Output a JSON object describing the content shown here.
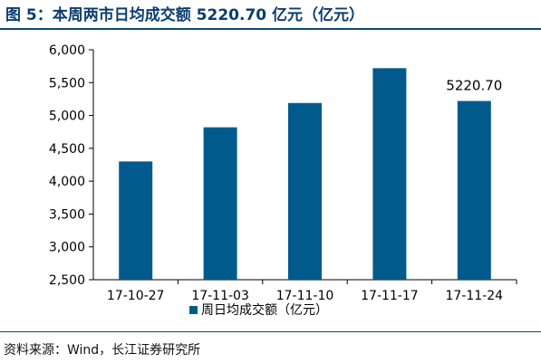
{
  "figure": {
    "title": "图 5：本周两市日均成交额 5220.70 亿元（亿元）",
    "source": "资料来源：Wind，长江证券研究所"
  },
  "chart_data": {
    "type": "bar",
    "categories": [
      "17-10-27",
      "17-11-03",
      "17-11-10",
      "17-11-17",
      "17-11-24"
    ],
    "series": [
      {
        "name": "周日均成交额（亿元）",
        "values": [
          4300,
          4820,
          5190,
          5720,
          5220.7
        ],
        "color": "#005b8c"
      }
    ],
    "yticks": [
      "2,500",
      "3,000",
      "3,500",
      "4,000",
      "4,500",
      "5,000",
      "5,500",
      "6,000"
    ],
    "ylim": [
      2500,
      6000
    ],
    "ystep": 500,
    "data_labels": [
      {
        "category_index": 4,
        "text": "5220.70"
      }
    ],
    "grid": false,
    "legend_position": "bottom-center"
  }
}
